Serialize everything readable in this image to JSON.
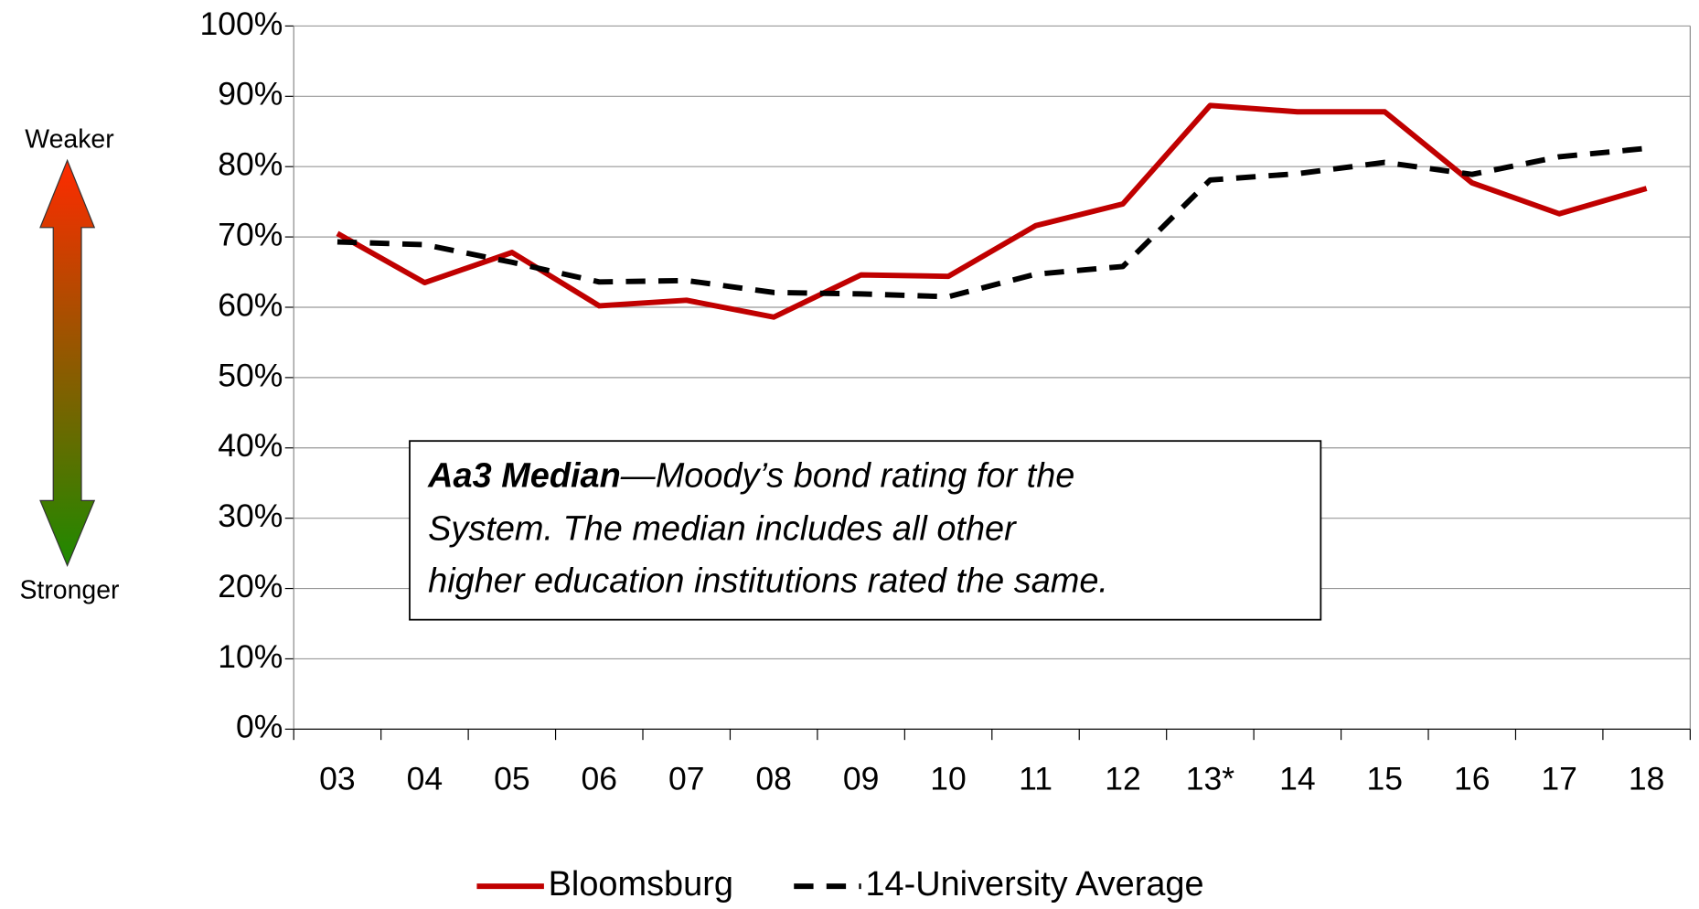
{
  "chart_data": {
    "type": "line",
    "side_labels": {
      "top": "Weaker",
      "bottom": "Stronger"
    },
    "annotation": {
      "bold": "Aa3 Median",
      "lines": [
        "—Moody’s bond rating for the",
        "System. The median includes all other",
        "higher education institutions rated the same."
      ]
    },
    "categories": [
      "03",
      "04",
      "05",
      "06",
      "07",
      "08",
      "09",
      "10",
      "11",
      "12",
      "13*",
      "14",
      "15",
      "16",
      "17",
      "18"
    ],
    "series": [
      {
        "name": "Bloomsburg",
        "color": "#c00000",
        "dash": false,
        "values": [
          70.5,
          63.5,
          67.8,
          60.2,
          61,
          58.6,
          64.6,
          64.4,
          71.6,
          74.7,
          88.7,
          87.8,
          87.8,
          77.7,
          73.3,
          76.9
        ]
      },
      {
        "name": "14-University Average",
        "color": "#000000",
        "dash": true,
        "values": [
          69.3,
          68.9,
          66.4,
          63.6,
          63.8,
          62.1,
          61.9,
          61.5,
          64.7,
          65.8,
          78.1,
          79,
          80.6,
          78.9,
          81.4,
          82.6
        ]
      }
    ],
    "ylim": [
      0,
      100
    ],
    "yticks": [
      {
        "value": 0,
        "label": "0%"
      },
      {
        "value": 10,
        "label": "10%"
      },
      {
        "value": 20,
        "label": "20%"
      },
      {
        "value": 30,
        "label": "30%"
      },
      {
        "value": 40,
        "label": "40%"
      },
      {
        "value": 50,
        "label": "50%"
      },
      {
        "value": 60,
        "label": "60%"
      },
      {
        "value": 70,
        "label": "70%"
      },
      {
        "value": 80,
        "label": "80%"
      },
      {
        "value": 90,
        "label": "90%"
      },
      {
        "value": 100,
        "label": "100%"
      }
    ],
    "grid": true,
    "legend": "bottom"
  }
}
